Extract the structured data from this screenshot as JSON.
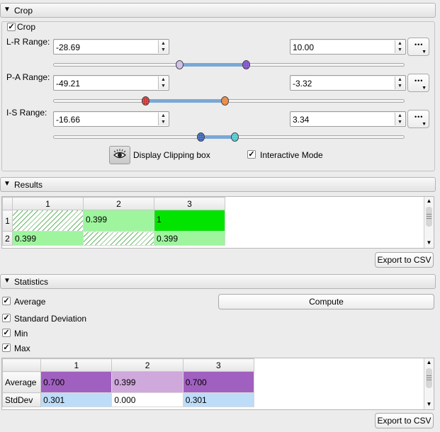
{
  "crop": {
    "section_title": "Crop",
    "enable_label": "Crop",
    "lr": {
      "label": "L-R Range:",
      "min": "-28.69",
      "max": "10.00",
      "handle_min_color": "#c8b4ea",
      "handle_max_color": "#7a3bd0"
    },
    "pa": {
      "label": "P-A Range:",
      "min": "-49.21",
      "max": "-3.32",
      "handle_min_color": "#cc2020",
      "handle_max_color": "#f07a20"
    },
    "is": {
      "label": "I-S Range:",
      "min": "-16.66",
      "max": "3.34",
      "handle_min_color": "#2457b8",
      "handle_max_color": "#35c6d0"
    },
    "more_dots": "•••",
    "display_clipping_label": "Display Clipping box",
    "interactive_mode_label": "Interactive Mode",
    "eye_icon": "eye-icon"
  },
  "results": {
    "section_title": "Results",
    "columns": [
      "1",
      "2",
      "3"
    ],
    "rows": [
      {
        "header": "1",
        "cells": [
          "",
          "0.399",
          "1"
        ]
      },
      {
        "header": "2",
        "cells": [
          "0.399",
          "",
          "0.399"
        ]
      }
    ],
    "export_label": "Export to CSV"
  },
  "statistics": {
    "section_title": "Statistics",
    "options": [
      "Average",
      "Standard Deviation",
      "Min",
      "Max"
    ],
    "compute_label": "Compute",
    "columns": [
      "1",
      "2",
      "3"
    ],
    "rows": [
      {
        "header": "Average",
        "cells": [
          "0.700",
          "0.399",
          "0.700"
        ]
      },
      {
        "header": "StdDev",
        "cells": [
          "0.301",
          "0.000",
          "0.301"
        ]
      }
    ],
    "export_label": "Export to CSV"
  },
  "colors": {
    "green_light": "#9ef59e",
    "green_strong": "#00e400",
    "purple_strong": "#a060c0",
    "purple_light": "#cfa8dc",
    "blue_light": "#bcdcf8"
  }
}
